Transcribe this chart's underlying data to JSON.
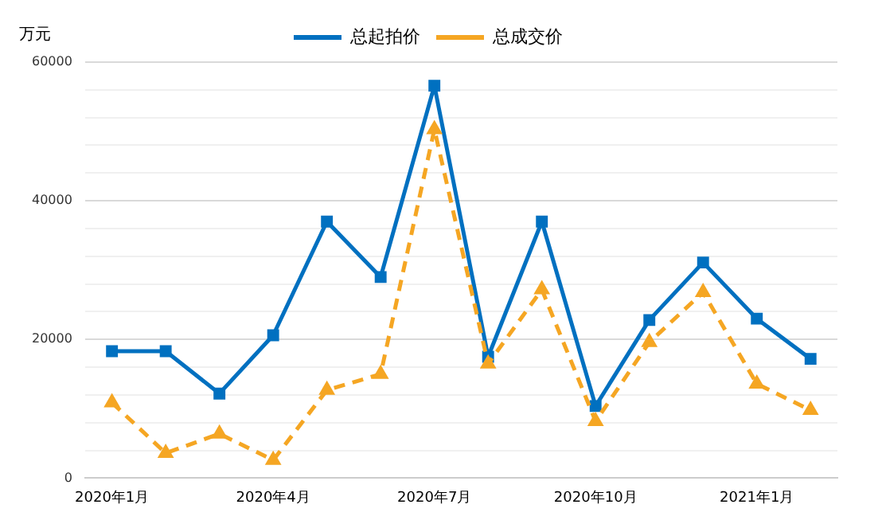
{
  "chart_data": {
    "type": "line",
    "ylabel": "万元",
    "categories": [
      "2020年1月",
      null,
      null,
      "2020年4月",
      null,
      null,
      "2020年7月",
      null,
      null,
      "2020年10月",
      null,
      null,
      "2021年1月",
      null
    ],
    "series": [
      {
        "name": "总起拍价",
        "color": "#0070c0",
        "marker": "square",
        "line_style": "solid",
        "values": [
          18300,
          18300,
          12200,
          20600,
          37000,
          29000,
          56600,
          17500,
          37000,
          10400,
          22800,
          31100,
          23000,
          17200
        ]
      },
      {
        "name": "总成交价",
        "color": "#f5a623",
        "marker": "triangle",
        "line_style": "dashed",
        "values": [
          10900,
          3600,
          6400,
          2600,
          12700,
          15000,
          50300,
          16500,
          27200,
          8200,
          19600,
          26800,
          13600,
          9800
        ]
      }
    ],
    "ylim": [
      0,
      60000
    ],
    "yticks": [
      0,
      {
        "value": 4000,
        "label": null
      },
      {
        "value": 8000,
        "label": null
      },
      {
        "value": 12000,
        "label": null
      },
      {
        "value": 16000,
        "label": null
      },
      20000,
      {
        "value": 24000,
        "label": null
      },
      {
        "value": 28000,
        "label": null
      },
      {
        "value": 32000,
        "label": null
      },
      {
        "value": 36000,
        "label": null
      },
      40000,
      {
        "value": 44000,
        "label": null
      },
      {
        "value": 48000,
        "label": null
      },
      {
        "value": 52000,
        "label": null
      },
      {
        "value": 56000,
        "label": null
      },
      60000
    ],
    "grid": "y",
    "legend": "top"
  }
}
